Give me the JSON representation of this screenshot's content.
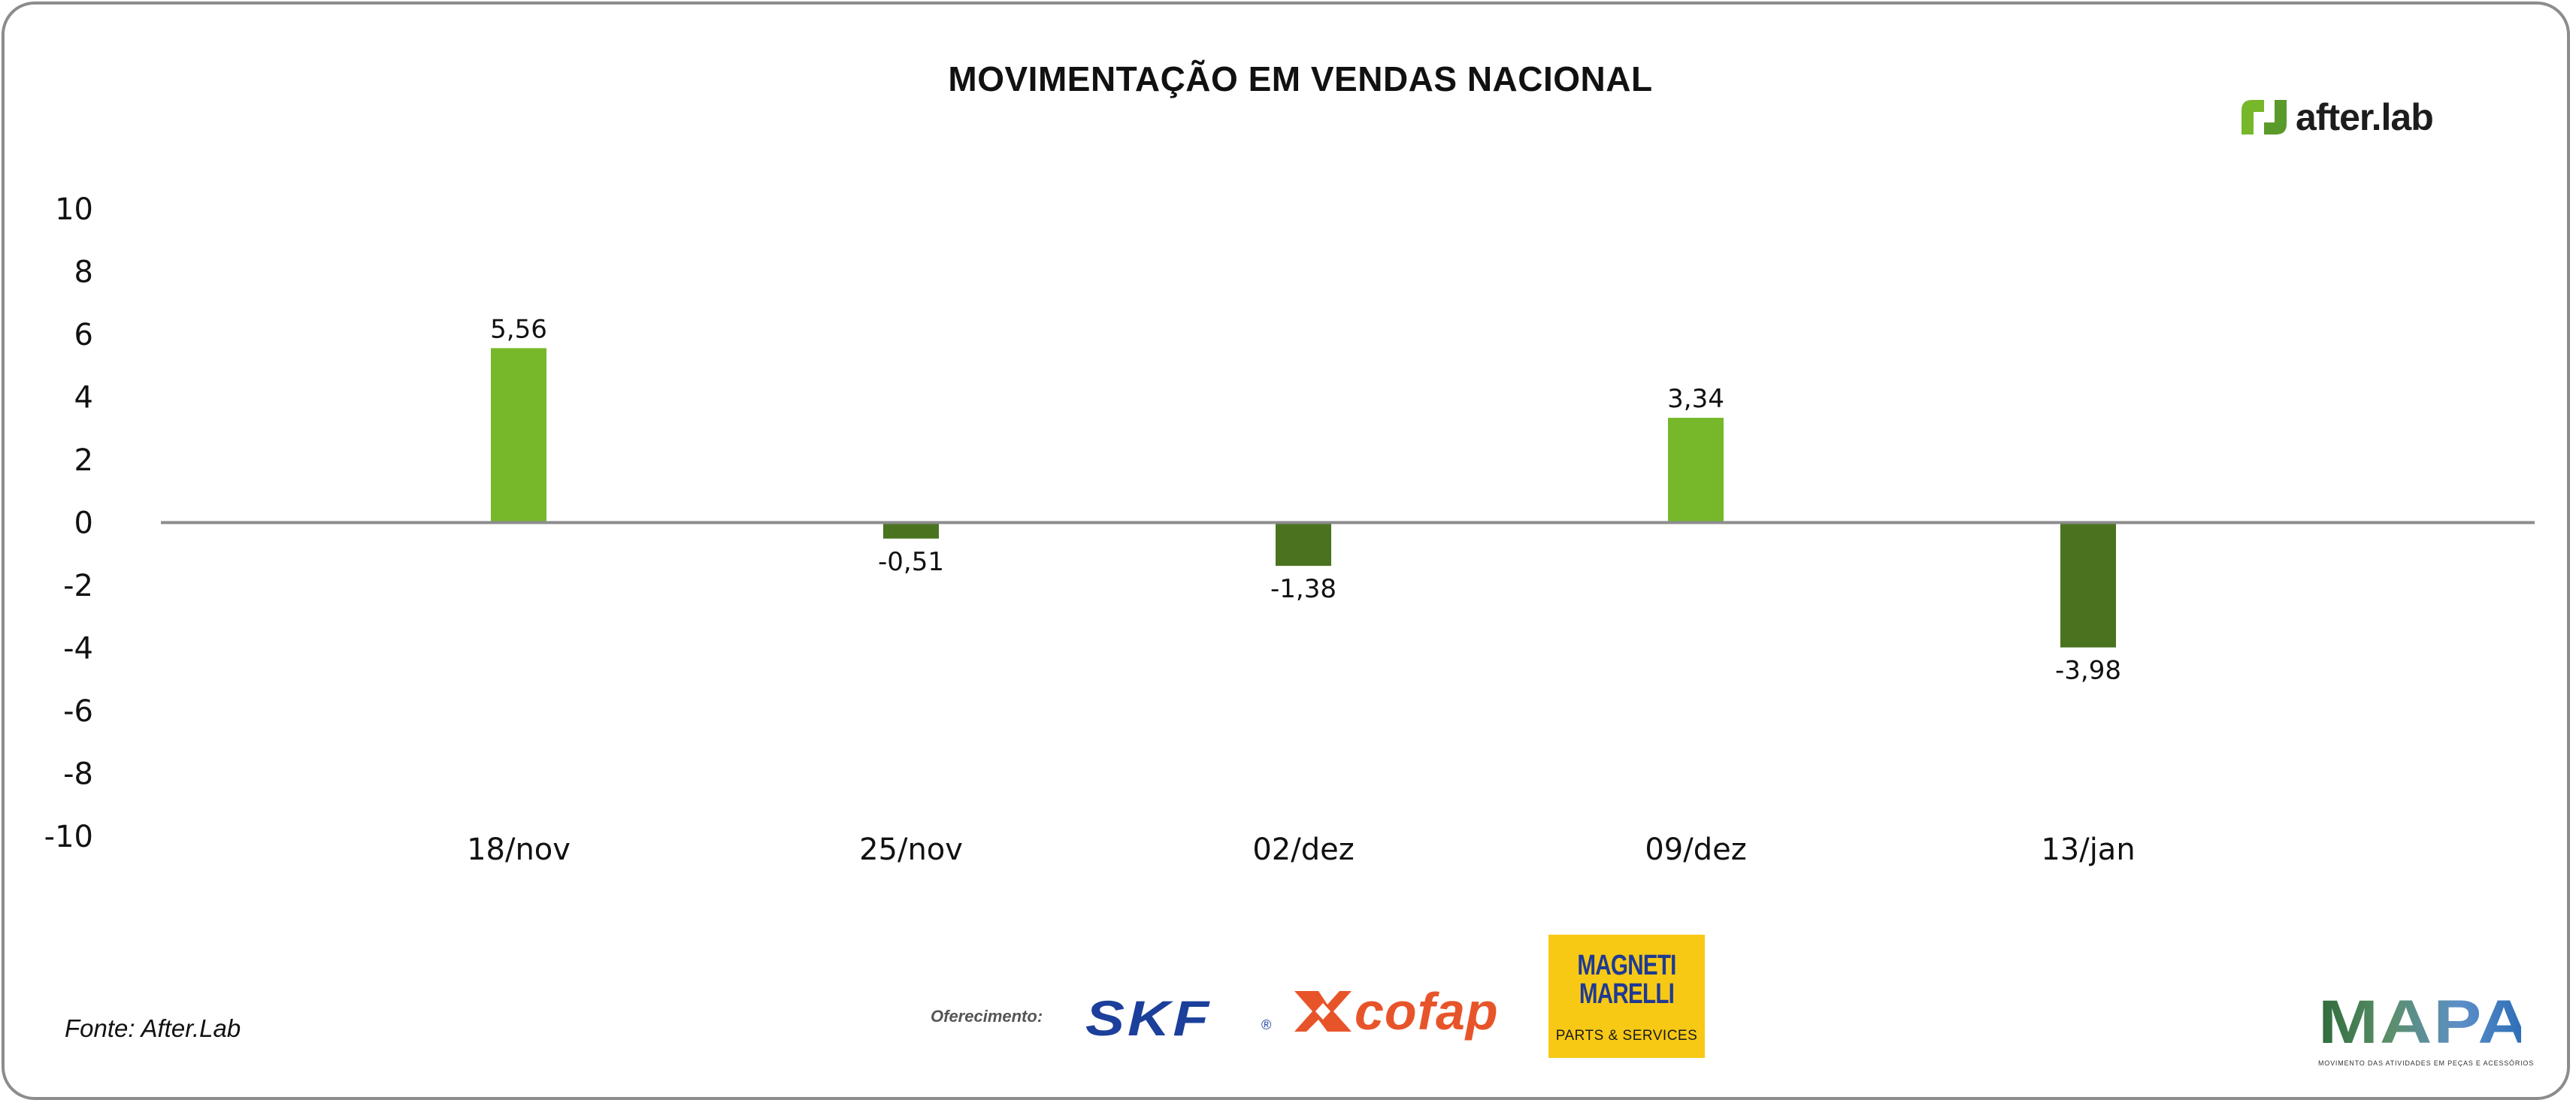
{
  "chart_data": {
    "type": "bar",
    "title": "MOVIMENTAÇÃO EM VENDAS NACIONAL",
    "categories": [
      "18/nov",
      "25/nov",
      "02/dez",
      "09/dez",
      "13/jan"
    ],
    "values": [
      5.56,
      -0.51,
      -1.38,
      3.34,
      -3.98
    ],
    "value_labels": [
      "5,56",
      "-0,51",
      "-1,38",
      "3,34",
      "-3,98"
    ],
    "y_ticks": [
      10,
      8,
      6,
      4,
      2,
      0,
      -2,
      -4,
      -6,
      -8,
      -10
    ],
    "y_tick_labels": [
      "10",
      "8",
      "6",
      "4",
      "2",
      "0",
      "-2",
      "-4",
      "-6",
      "-8",
      "-10"
    ],
    "ylim": [
      -10,
      10
    ],
    "xlabel": "",
    "ylabel": "",
    "grid": false,
    "legend": "none",
    "colors": {
      "positive": "#76b82a",
      "negative": "#4a7320",
      "axis": "#8c8c8c"
    }
  },
  "branding": {
    "afterlab_text": "after.lab",
    "afterlab_color": "#76b82a",
    "source_note": "Fonte: After.Lab",
    "sponsor_caption": "Oferecimento:",
    "skf_text": "SKF",
    "skf_reg": "®",
    "cofap_text": "cofap",
    "magneti_line1": "MAGNETI",
    "magneti_line2": "MARELLI",
    "magneti_sub": "PARTS & SERVICES",
    "mapa_text": "MAPA",
    "mapa_sub": "MOVIMENTO DAS ATIVIDADES EM PEÇAS E ACESSÓRIOS"
  }
}
